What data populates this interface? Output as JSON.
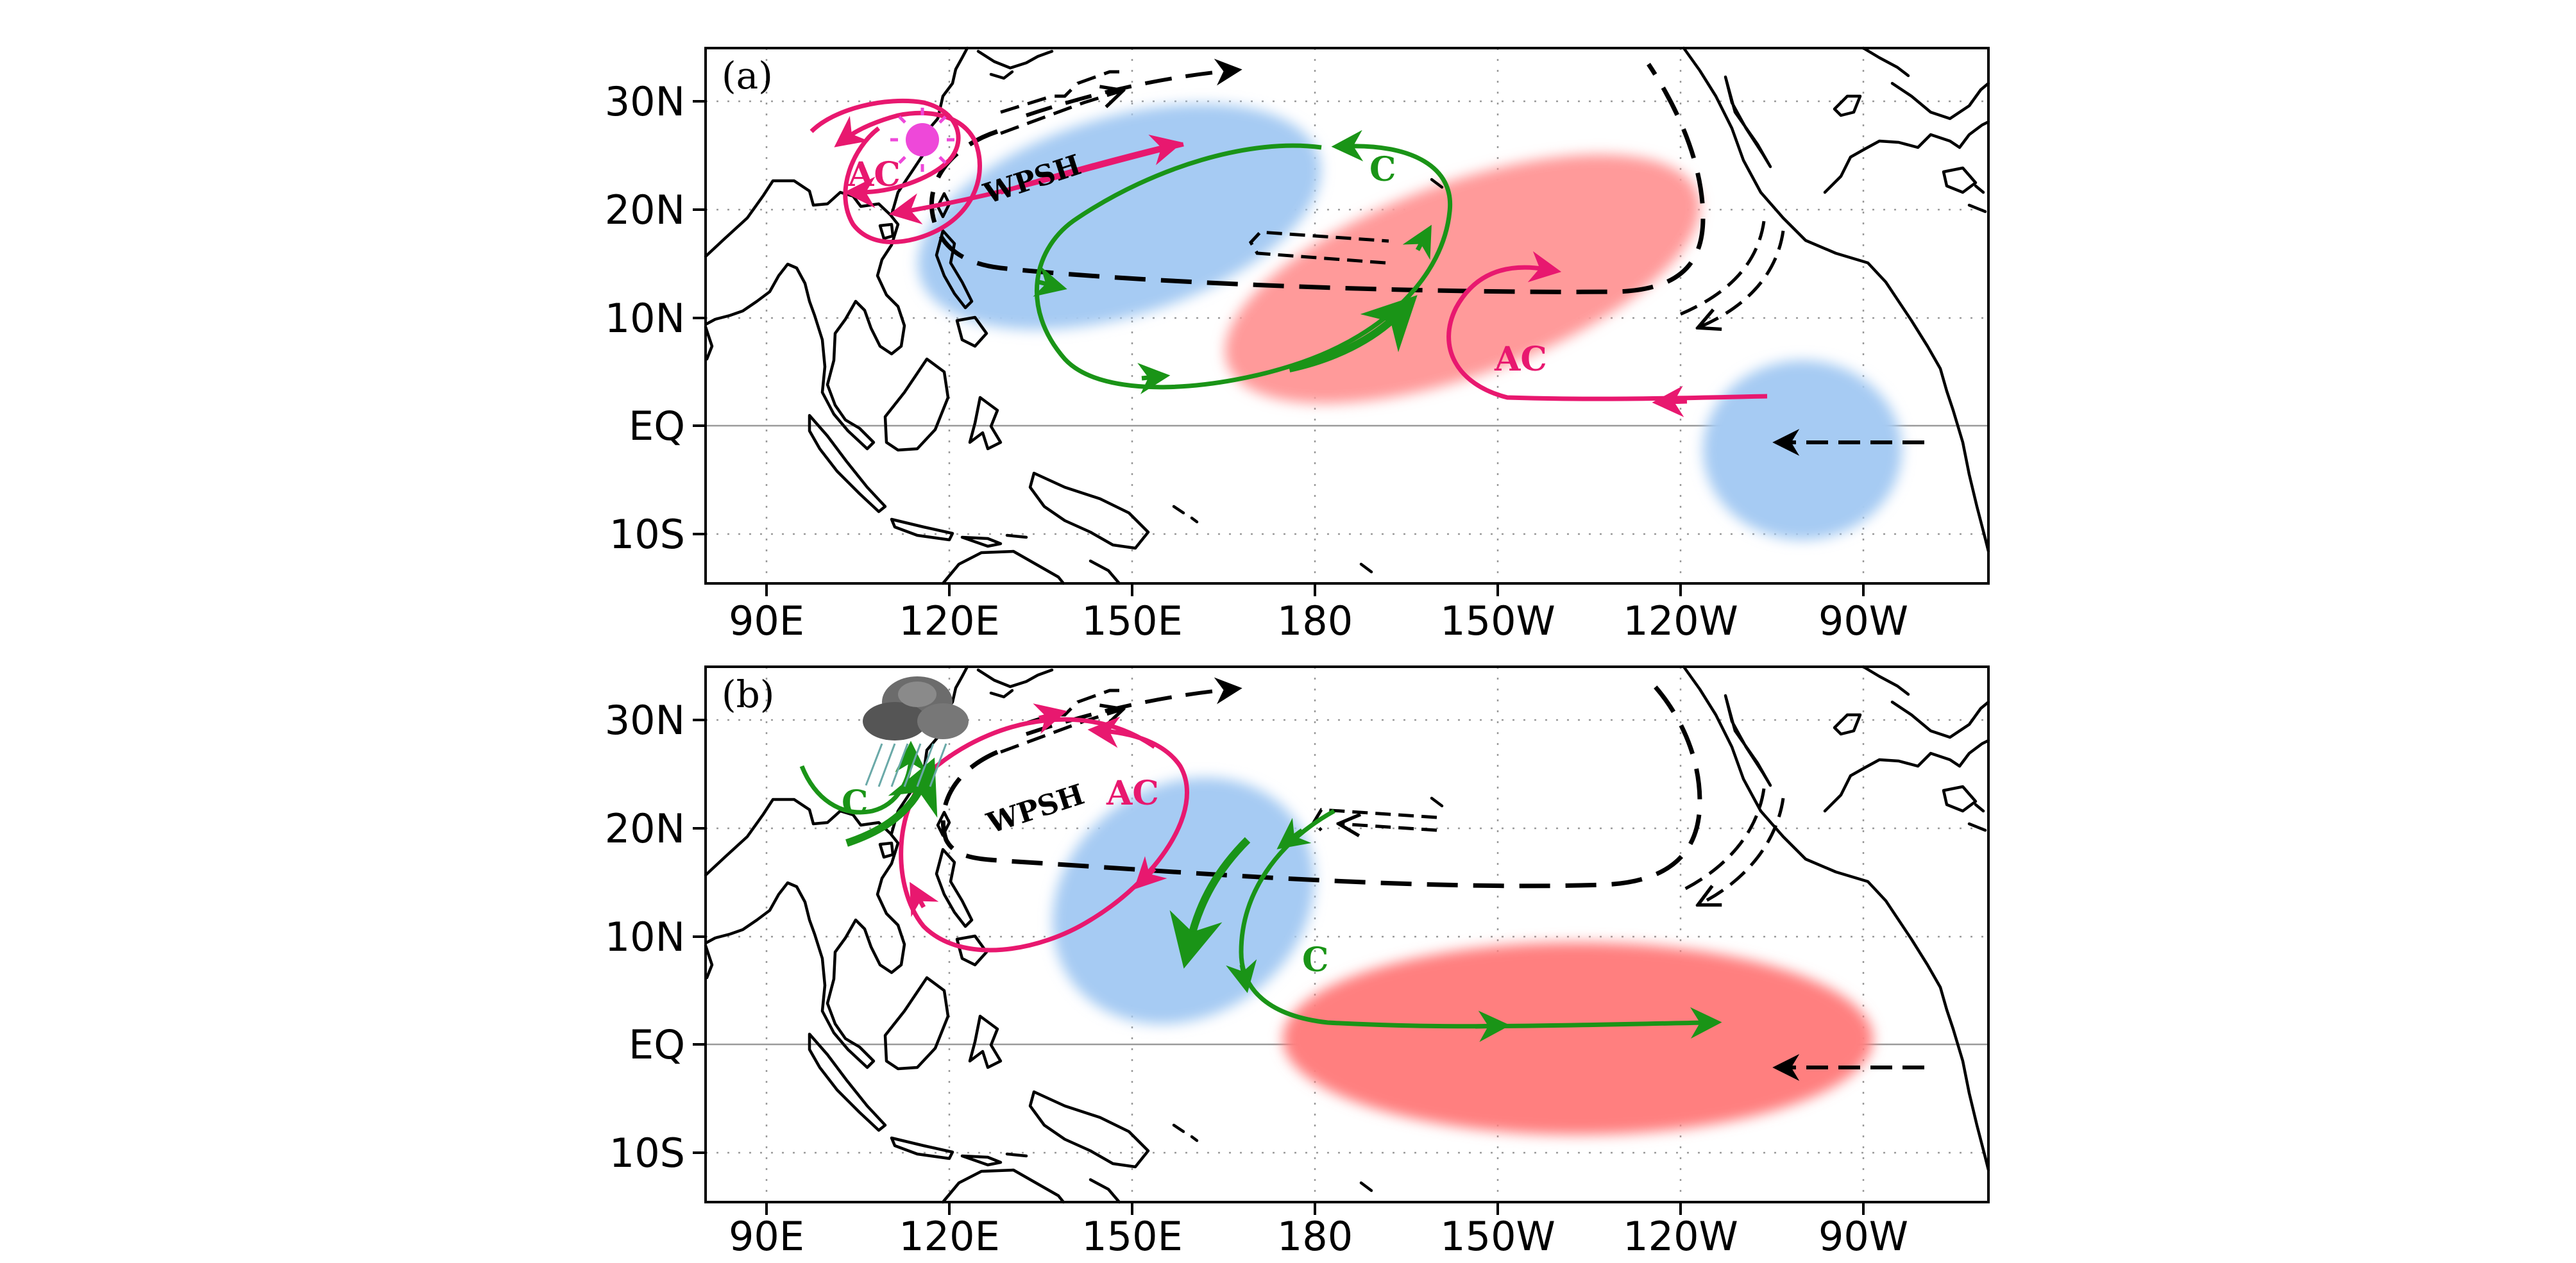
{
  "figure": {
    "panels": [
      {
        "id": "a",
        "label": "(a)",
        "annotations": {
          "wpsh": "WPSH",
          "cyclone": "C",
          "anticyclone_north": "AC",
          "anticyclone_east": "AC"
        },
        "icon": "sun-icon"
      },
      {
        "id": "b",
        "label": "(b)",
        "annotations": {
          "wpsh": "WPSH",
          "anticyclone": "AC",
          "cyclone_north": "C",
          "cyclone_east": "C"
        },
        "icon": "rain-cloud-icon"
      }
    ],
    "axes": {
      "x_ticks": [
        "90E",
        "120E",
        "150E",
        "180",
        "150W",
        "120W",
        "90W"
      ],
      "y_ticks": [
        "30N",
        "20N",
        "10N",
        "EQ",
        "10S"
      ]
    },
    "colors": {
      "anticyclone": "#e8186f",
      "cyclone": "#1a9417",
      "cold_anomaly": "#a6cbf3",
      "warm_anomaly": "#ff8c8c",
      "wind": "#000000"
    }
  }
}
